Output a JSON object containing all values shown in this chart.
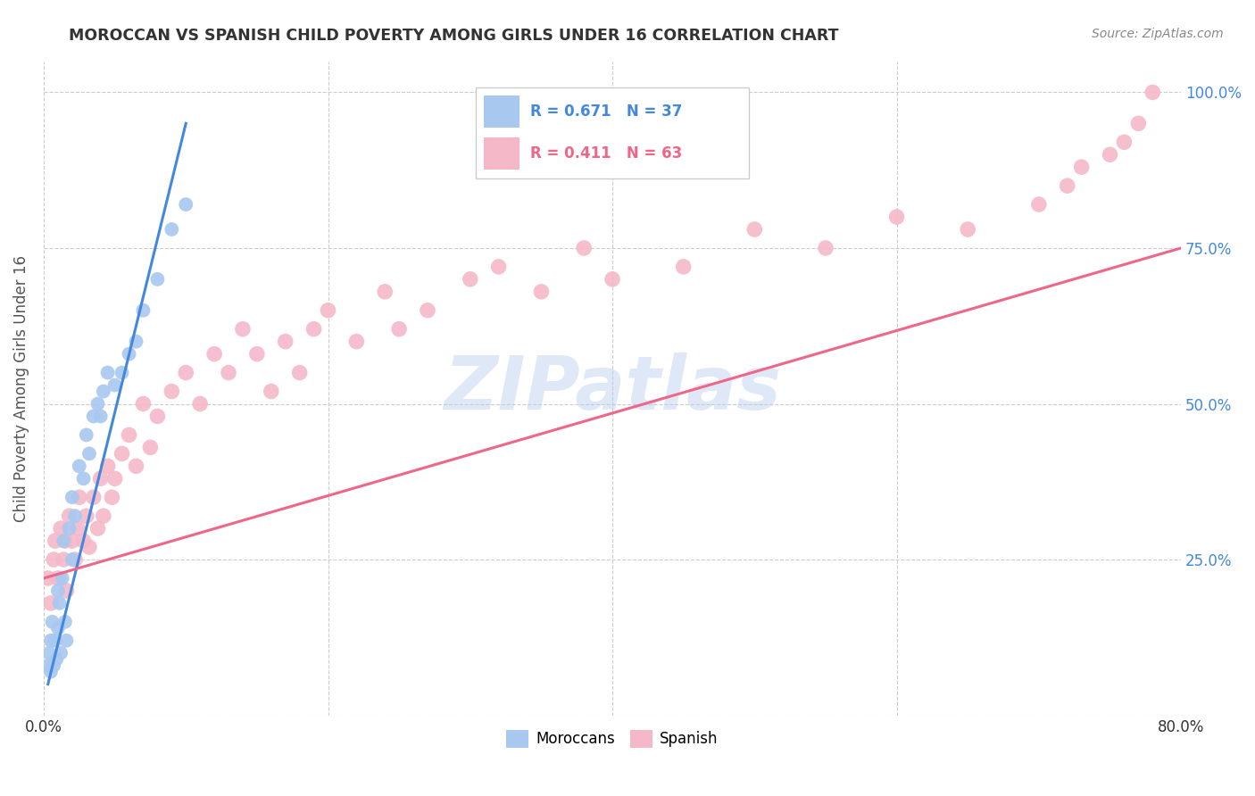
{
  "title": "MOROCCAN VS SPANISH CHILD POVERTY AMONG GIRLS UNDER 16 CORRELATION CHART",
  "source": "Source: ZipAtlas.com",
  "ylabel": "Child Poverty Among Girls Under 16",
  "watermark": "ZIPatlas",
  "moroccan_R": 0.671,
  "moroccan_N": 37,
  "spanish_R": 0.411,
  "spanish_N": 63,
  "xlim": [
    0.0,
    0.8
  ],
  "ylim": [
    0.0,
    1.05
  ],
  "ytick_vals": [
    0.0,
    0.25,
    0.5,
    0.75,
    1.0
  ],
  "xtick_vals": [
    0.0,
    0.2,
    0.4,
    0.6,
    0.8
  ],
  "ytick_labels": [
    "",
    "25.0%",
    "50.0%",
    "75.0%",
    "100.0%"
  ],
  "moroccan_color": "#a8c8f0",
  "spanish_color": "#f5b8c8",
  "moroccan_line_color": "#4488dd",
  "spanish_line_color": "#ee6688",
  "background_color": "#ffffff",
  "grid_color": "#cccccc",
  "moroccan_x": [
    0.003,
    0.004,
    0.005,
    0.005,
    0.006,
    0.007,
    0.008,
    0.009,
    0.01,
    0.01,
    0.011,
    0.012,
    0.013,
    0.014,
    0.015,
    0.016,
    0.018,
    0.02,
    0.02,
    0.022,
    0.025,
    0.028,
    0.03,
    0.032,
    0.035,
    0.038,
    0.04,
    0.042,
    0.045,
    0.05,
    0.055,
    0.06,
    0.065,
    0.07,
    0.08,
    0.09,
    0.1
  ],
  "moroccan_y": [
    0.08,
    0.1,
    0.07,
    0.12,
    0.15,
    0.08,
    0.12,
    0.09,
    0.14,
    0.2,
    0.18,
    0.1,
    0.22,
    0.28,
    0.15,
    0.12,
    0.3,
    0.25,
    0.35,
    0.32,
    0.4,
    0.38,
    0.45,
    0.42,
    0.48,
    0.5,
    0.48,
    0.52,
    0.55,
    0.53,
    0.55,
    0.58,
    0.6,
    0.65,
    0.7,
    0.78,
    0.82
  ],
  "moroccan_regline_x": [
    0.003,
    0.1
  ],
  "moroccan_regline_y": [
    0.05,
    0.95
  ],
  "spanish_x": [
    0.003,
    0.005,
    0.007,
    0.008,
    0.01,
    0.012,
    0.014,
    0.015,
    0.016,
    0.018,
    0.02,
    0.022,
    0.024,
    0.025,
    0.028,
    0.03,
    0.032,
    0.035,
    0.038,
    0.04,
    0.042,
    0.045,
    0.048,
    0.05,
    0.055,
    0.06,
    0.065,
    0.07,
    0.075,
    0.08,
    0.09,
    0.1,
    0.11,
    0.12,
    0.13,
    0.14,
    0.15,
    0.16,
    0.17,
    0.18,
    0.19,
    0.2,
    0.22,
    0.24,
    0.25,
    0.27,
    0.3,
    0.32,
    0.35,
    0.38,
    0.4,
    0.45,
    0.5,
    0.55,
    0.6,
    0.65,
    0.7,
    0.72,
    0.73,
    0.75,
    0.76,
    0.77,
    0.78
  ],
  "spanish_y": [
    0.22,
    0.18,
    0.25,
    0.28,
    0.22,
    0.3,
    0.25,
    0.28,
    0.2,
    0.32,
    0.28,
    0.25,
    0.3,
    0.35,
    0.28,
    0.32,
    0.27,
    0.35,
    0.3,
    0.38,
    0.32,
    0.4,
    0.35,
    0.38,
    0.42,
    0.45,
    0.4,
    0.5,
    0.43,
    0.48,
    0.52,
    0.55,
    0.5,
    0.58,
    0.55,
    0.62,
    0.58,
    0.52,
    0.6,
    0.55,
    0.62,
    0.65,
    0.6,
    0.68,
    0.62,
    0.65,
    0.7,
    0.72,
    0.68,
    0.75,
    0.7,
    0.72,
    0.78,
    0.75,
    0.8,
    0.78,
    0.82,
    0.85,
    0.88,
    0.9,
    0.92,
    0.95,
    1.0
  ],
  "spanish_regline_x": [
    0.0,
    0.8
  ],
  "spanish_regline_y": [
    0.22,
    0.75
  ]
}
